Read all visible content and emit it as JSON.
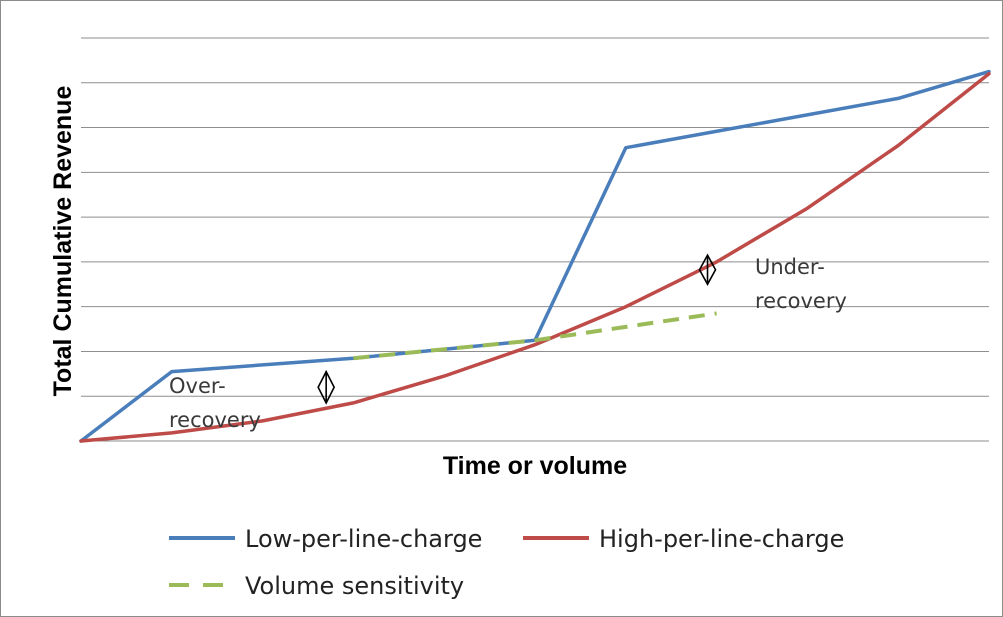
{
  "chart_data": {
    "type": "line",
    "title": "",
    "xlabel": "Time or volume",
    "ylabel": "Total Cumulative Revenue",
    "xlim": [
      0,
      10
    ],
    "ylim": [
      0,
      9
    ],
    "grid": true,
    "tick_labels_shown": false,
    "legend_position": "bottom",
    "series": [
      {
        "name": "Low-per-line-charge",
        "color": "#4a7ebb",
        "style": "solid",
        "x": [
          0,
          1,
          3,
          5,
          6,
          9,
          10
        ],
        "y": [
          0,
          1.55,
          1.85,
          2.25,
          6.55,
          7.65,
          8.25
        ]
      },
      {
        "name": "High-per-line-charge",
        "color": "#be4b48",
        "style": "solid",
        "x": [
          0,
          1,
          2,
          3,
          4,
          5,
          6,
          7,
          8,
          9,
          10
        ],
        "y": [
          0,
          0.18,
          0.45,
          0.85,
          1.45,
          2.15,
          3.0,
          4.0,
          5.2,
          6.6,
          8.2
        ]
      },
      {
        "name": "Volume sensitivity",
        "color": "#9bbb59",
        "style": "dashed",
        "x": [
          3,
          5,
          7
        ],
        "y": [
          1.85,
          2.25,
          2.85
        ]
      }
    ],
    "annotations": [
      {
        "text_lines": [
          "Over-",
          "recovery"
        ],
        "marker": "diamond-arrow",
        "x": 2.7,
        "y_from": 0.85,
        "y_to": 1.55
      },
      {
        "text_lines": [
          "Under-",
          "recovery"
        ],
        "marker": "diamond-arrow",
        "x": 6.9,
        "y_from": 3.5,
        "y_to": 4.15
      }
    ]
  }
}
